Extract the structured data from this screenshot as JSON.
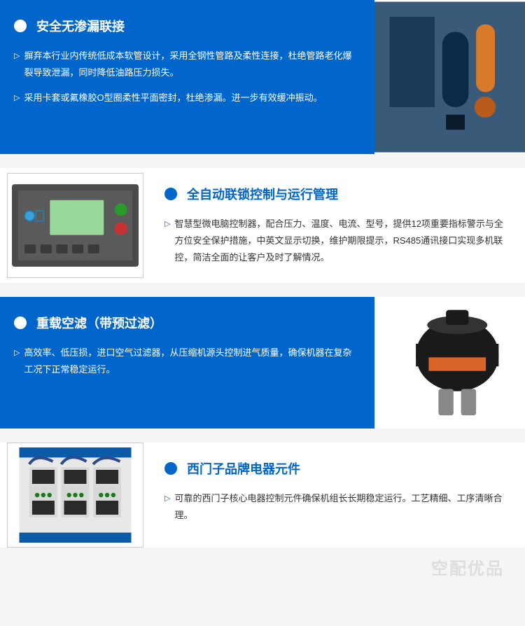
{
  "sections": [
    {
      "layout": "text-left",
      "bg": "blue",
      "title": "安全无渗漏联接",
      "paras": [
        "摒弃本行业内传统低成本软管设计，采用全钢性管路及柔性连接，杜绝管路老化爆裂导致泄漏，同时降低油路压力损失。",
        "采用卡套或氟橡胶O型圈柔性平面密封，杜绝渗漏。进一步有效缓冲振动。"
      ],
      "image": "compressor-interior",
      "heading_color": "#ffffff",
      "bullet_color": "#ffffff",
      "text_color": "#ffffff",
      "bg_color": "#0066cc"
    },
    {
      "layout": "img-left",
      "bg": "white",
      "title": "全自动联锁控制与运行管理",
      "paras": [
        "智慧型微电脑控制器，配合压力、温度、电流、型号，提供12项重要指标警示与全方位安全保护措施，中英文显示切换，维护期限提示，RS485通讯接口实现多机联控，简洁全面的让客户及时了解情况。"
      ],
      "image": "control-panel",
      "heading_color": "#0066cc",
      "bullet_color": "#0066cc",
      "text_color": "#333333",
      "bg_color": "#ffffff"
    },
    {
      "layout": "text-left",
      "bg": "blue",
      "title": "重载空滤（带预过滤）",
      "paras": [
        "高效率、低压损，进口空气过滤器，从压缩机源头控制进气质量，确保机器在复杂工况下正常稳定运行。"
      ],
      "image": "air-filter",
      "heading_color": "#ffffff",
      "bullet_color": "#ffffff",
      "text_color": "#ffffff",
      "bg_color": "#0066cc"
    },
    {
      "layout": "img-left",
      "bg": "white",
      "title": "西门子品牌电器元件",
      "paras": [
        "可靠的西门子核心电器控制元件确保机组长长期稳定运行。工艺精细、工序清晰合理。"
      ],
      "image": "siemens-contactors",
      "heading_color": "#0066cc",
      "bullet_color": "#0066cc",
      "text_color": "#333333",
      "bg_color": "#ffffff"
    }
  ],
  "watermark": "空配优品",
  "triangle_glyph": "▷"
}
